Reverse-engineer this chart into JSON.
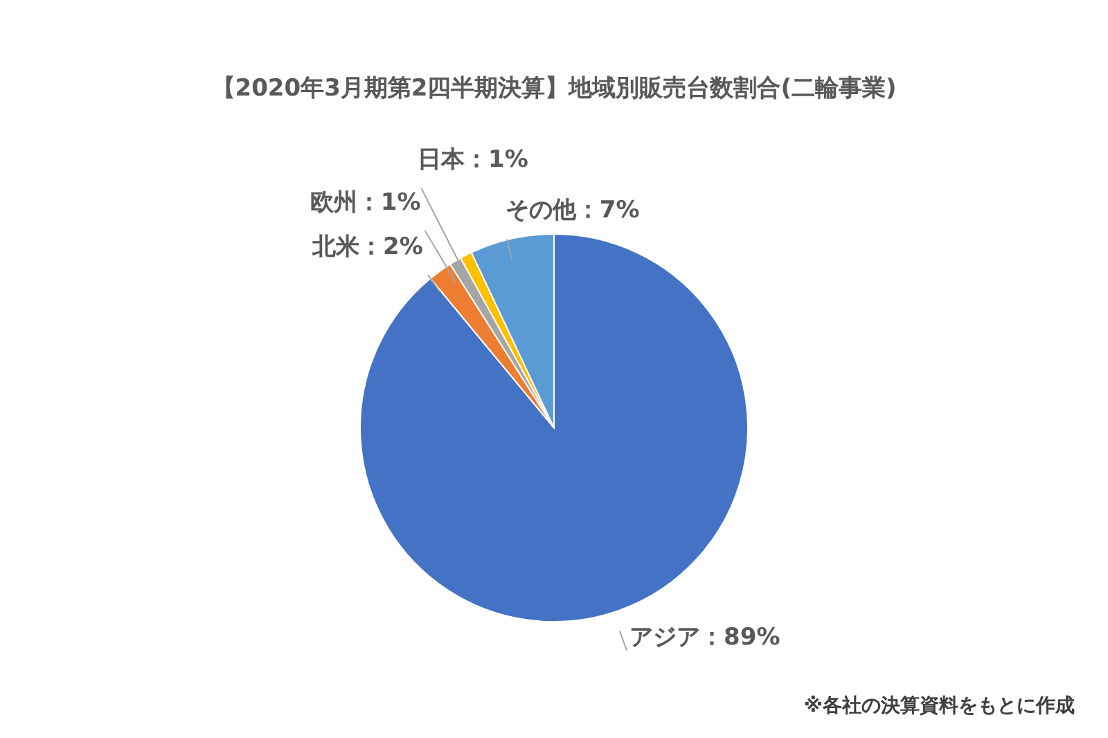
{
  "chart_data": {
    "type": "pie",
    "title": "【2020年3月期第2四半期決算】地域別販売台数割合(二輪事業)",
    "categories": [
      "アジア",
      "北米",
      "欧州",
      "日本",
      "その他"
    ],
    "values": [
      89,
      2,
      1,
      1,
      7
    ],
    "colors": [
      "#4472c4",
      "#ed7d31",
      "#a5a5a5",
      "#ffc000",
      "#5b9bd5"
    ],
    "value_labels": [
      "89%",
      "2%",
      "1%",
      "1%",
      "7%"
    ],
    "legend": false,
    "annotations": [
      "※各社の決算資料をもとに作成"
    ]
  }
}
